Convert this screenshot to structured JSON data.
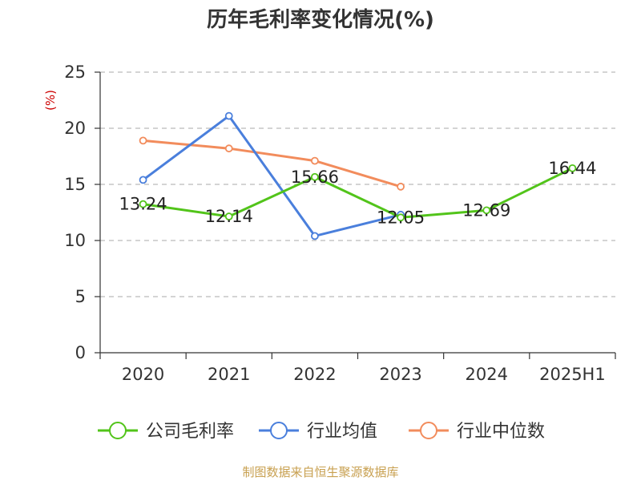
{
  "chart_data": {
    "type": "line",
    "title": "历年毛利率变化情况(%)",
    "ylabel": "(%)",
    "categories": [
      "2020",
      "2021",
      "2022",
      "2023",
      "2024",
      "2025H1"
    ],
    "ylim": [
      0,
      25
    ],
    "yticks": [
      0,
      5,
      10,
      15,
      20,
      25
    ],
    "grid": true,
    "legend_position": "bottom",
    "series": [
      {
        "name": "公司毛利率",
        "color": "#52c41a",
        "values": [
          13.24,
          12.14,
          15.66,
          12.05,
          12.69,
          16.44
        ],
        "labels": [
          "13.24",
          "12.14",
          "15.66",
          "12.05",
          "12.69",
          "16.44"
        ]
      },
      {
        "name": "行业均值",
        "color": "#4a7fdc",
        "values": [
          15.4,
          21.1,
          10.4,
          12.3,
          null,
          null
        ]
      },
      {
        "name": "行业中位数",
        "color": "#f28c5c",
        "values": [
          18.9,
          18.2,
          17.1,
          14.8,
          null,
          null
        ]
      }
    ],
    "source": "制图数据来自恒生聚源数据库"
  }
}
